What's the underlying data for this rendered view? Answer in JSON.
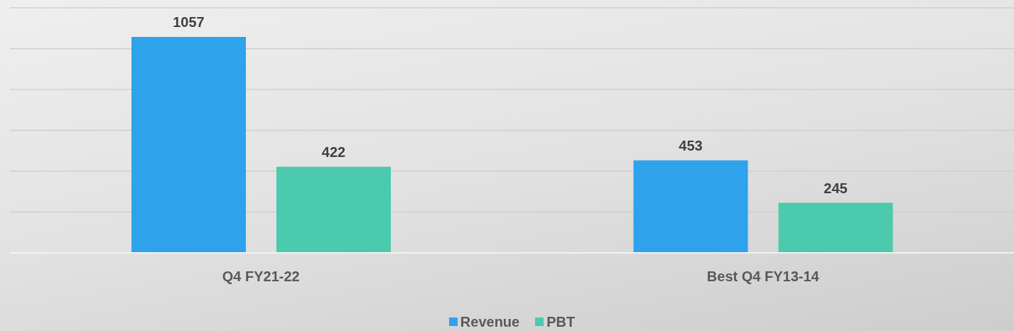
{
  "chart_data": {
    "type": "bar",
    "categories": [
      "Q4 FY21-22",
      "Best Q4 FY13-14"
    ],
    "series": [
      {
        "name": "Revenue",
        "color": "#2fa2ec",
        "values": [
          1057,
          453
        ]
      },
      {
        "name": "PBT",
        "color": "#4bcaad",
        "values": [
          422,
          245
        ]
      }
    ],
    "ylim": [
      0,
      1200
    ],
    "yticks": [
      {
        "value": 0,
        "label": null
      },
      {
        "value": 200,
        "label": null
      },
      {
        "value": 400,
        "label": null
      },
      {
        "value": 600,
        "label": null
      },
      {
        "value": 800,
        "label": null
      },
      {
        "value": 1000,
        "label": null
      },
      {
        "value": 1200,
        "label": null
      }
    ],
    "grid": "y",
    "tick_labels": "x",
    "data_labels": true,
    "legend": "bottom"
  }
}
